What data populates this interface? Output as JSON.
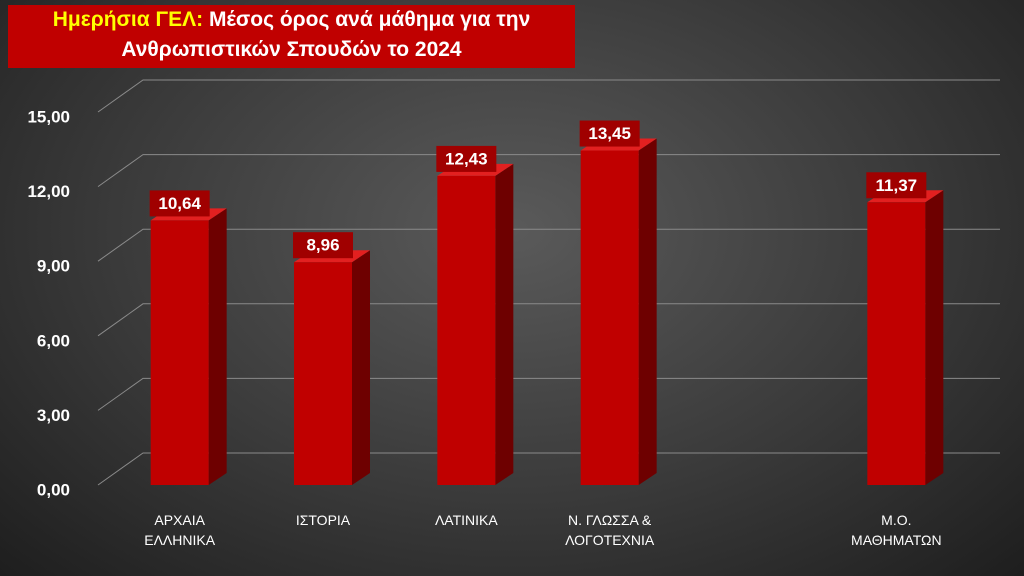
{
  "chart_data": {
    "type": "bar3d",
    "title": {
      "highlight": "Ημερήσια ΓΕΛ:",
      "lines": [
        "Μέσος όρος ανά μάθημα για την",
        "Ανθρωπιστικών Σπουδών το 2024"
      ]
    },
    "categories": [
      "ΑΡΧΑΙΑ ΕΛΛΗΝΙΚΑ",
      "ΙΣΤΟΡΙΑ",
      "ΛΑΤΙΝΙΚΑ",
      "Ν. ΓΛΩΣΣΑ & ΛΟΓΟΤΕΧΝΙΑ",
      null,
      "Μ.Ο. ΜΑΘΗΜΑΤΩΝ"
    ],
    "values": [
      10.64,
      8.96,
      12.43,
      13.45,
      null,
      11.37
    ],
    "value_labels": [
      "10,64",
      "8,96",
      "12,43",
      "13,45",
      null,
      "11,37"
    ],
    "color": "#c00000",
    "ylim": [
      0,
      15
    ],
    "yticks": [
      {
        "value": 0,
        "label": "0,00"
      },
      {
        "value": 3,
        "label": "3,00"
      },
      {
        "value": 6,
        "label": "6,00"
      },
      {
        "value": 9,
        "label": "9,00"
      },
      {
        "value": 12,
        "label": "12,00"
      },
      {
        "value": 15,
        "label": "15,00"
      }
    ],
    "grid": true
  }
}
